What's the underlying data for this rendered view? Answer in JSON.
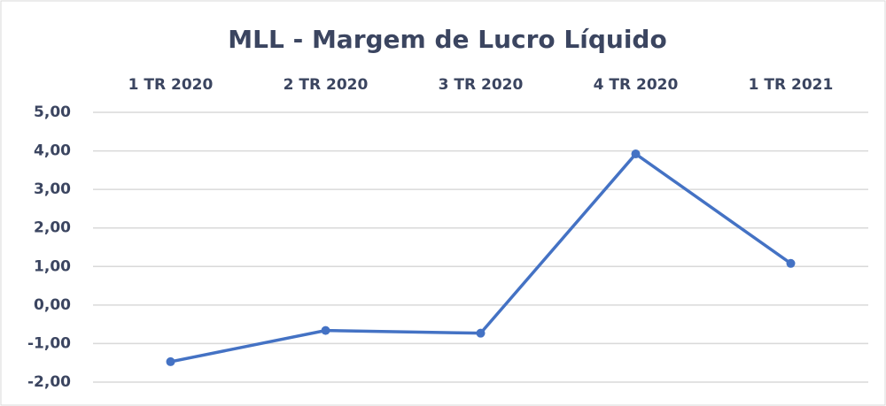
{
  "chart_data": {
    "type": "line",
    "title": "MLL - Margem de Lucro Líquido",
    "categories": [
      "1 TR 2020",
      "2 TR 2020",
      "3 TR 2020",
      "4 TR 2020",
      "1 TR 2021"
    ],
    "series": [
      {
        "name": "MLL",
        "color": "#4472c4",
        "values": [
          -1.47,
          -0.66,
          -0.73,
          3.92,
          1.08
        ]
      }
    ],
    "ylim": [
      -2,
      5
    ],
    "yticks": [
      {
        "value": 5,
        "label": "5,00"
      },
      {
        "value": 4,
        "label": "4,00"
      },
      {
        "value": 3,
        "label": "3,00"
      },
      {
        "value": 2,
        "label": "2,00"
      },
      {
        "value": 1,
        "label": "1,00"
      },
      {
        "value": 0,
        "label": "0,00"
      },
      {
        "value": -1,
        "label": "-1,00"
      },
      {
        "value": -2,
        "label": "-2,00"
      }
    ],
    "grid": true
  }
}
